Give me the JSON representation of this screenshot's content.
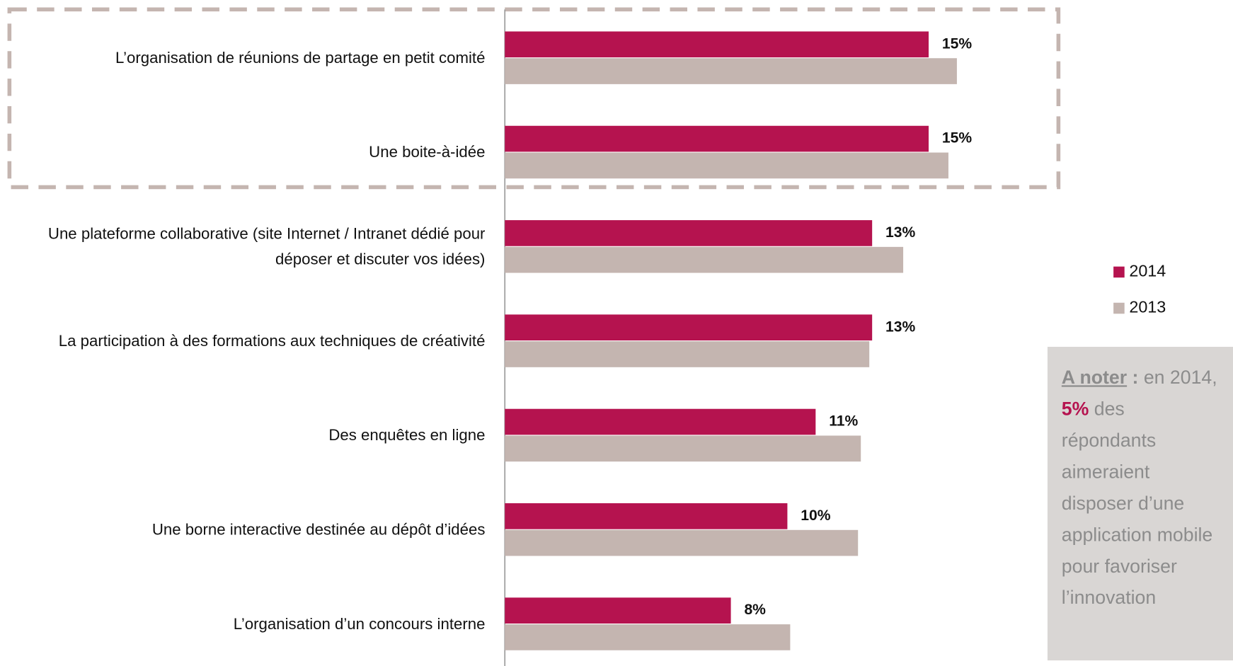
{
  "chart_data": {
    "type": "hbar",
    "categories": [
      "L’organisation de réunions de partage en petit comité",
      "Une boite-à-idée",
      "Une plateforme collaborative (site Internet / Intranet dédié pour déposer et discuter vos idées)",
      "La participation à des formations aux techniques de créativité",
      "Des enquêtes en ligne",
      "Une borne interactive destinée au dépôt d’idées",
      "L’organisation d’un concours interne"
    ],
    "series": [
      {
        "name": "2014",
        "color": "#b5134f",
        "values": [
          15,
          15,
          13,
          13,
          11,
          10,
          8
        ],
        "value_labels": [
          "15%",
          "15%",
          "13%",
          "13%",
          "11%",
          "10%",
          "8%"
        ]
      },
      {
        "name": "2013",
        "color": "#c4b5b0",
        "values": [
          16,
          15.7,
          14.1,
          12.9,
          12.6,
          12.5,
          10.1
        ]
      }
    ],
    "xlim": [
      0,
      20
    ],
    "legend": "right",
    "annotation": {
      "label": "A noter",
      "colon": ":",
      "before": "en 2014,",
      "highlight": "5%",
      "after": "des répondants aimeraient disposer d’une application mobile pour favoriser l’innovation"
    }
  }
}
